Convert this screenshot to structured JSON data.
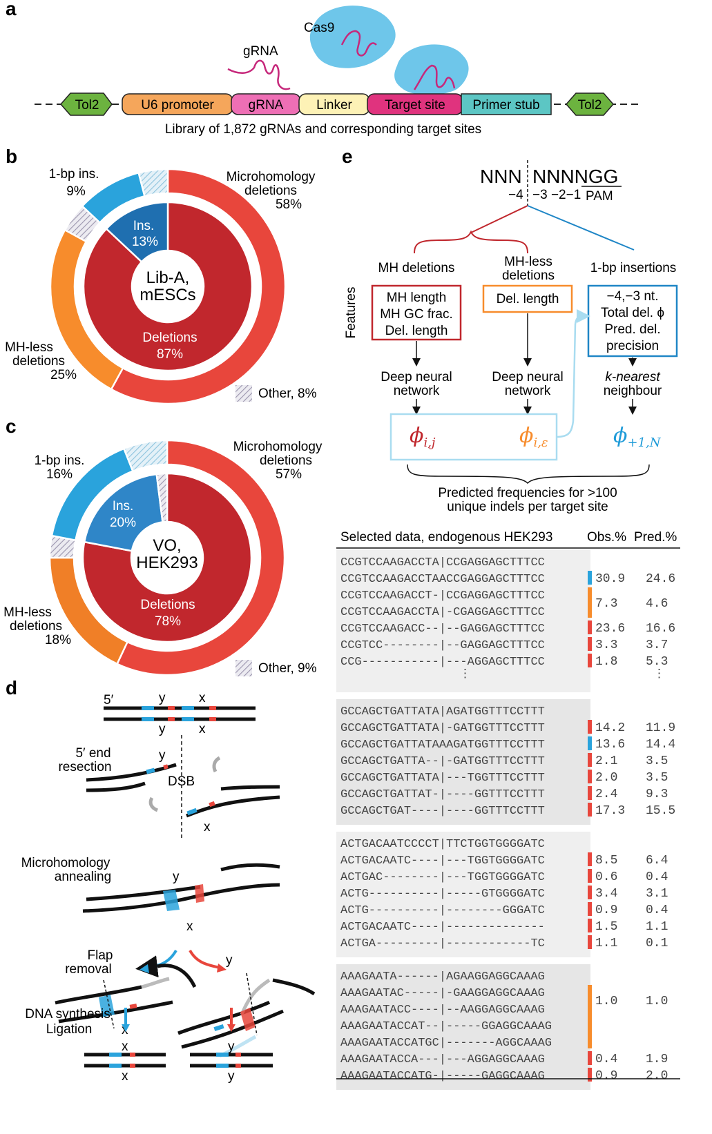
{
  "panel_a": {
    "letter": "a",
    "cas9": "Cas9",
    "grna_label": "gRNA",
    "segments": [
      {
        "label": "Tol2",
        "color": "#6cb33f"
      },
      {
        "label": "U6 promoter",
        "color": "#f5a65b"
      },
      {
        "label": "gRNA",
        "color": "#ee6fb5"
      },
      {
        "label": "Linker",
        "color": "#fdf2b6"
      },
      {
        "label": "Target site",
        "color": "#e0337e"
      },
      {
        "label": "Primer stub",
        "color": "#5cc6c4"
      },
      {
        "label": "Tol2",
        "color": "#6cb33f"
      }
    ],
    "caption": "Library of 1,872 gRNAs and corresponding target sites"
  },
  "panel_b": {
    "letter": "b",
    "center": [
      "Lib-A,",
      "mESCs"
    ],
    "outer_labels": {
      "mh": [
        "Microhomology",
        "deletions",
        "58%"
      ],
      "ins": [
        "1-bp ins.",
        "9%"
      ],
      "mhless": [
        "MH-less",
        "deletions",
        "25%"
      ]
    },
    "inner_labels": {
      "ins": [
        "Ins.",
        "13%"
      ],
      "del": [
        "Deletions",
        "87%"
      ]
    },
    "other": "Other, 8%"
  },
  "panel_c": {
    "letter": "c",
    "center": [
      "VO,",
      "HEK293"
    ],
    "outer_labels": {
      "mh": [
        "Microhomology",
        "deletions",
        "57%"
      ],
      "ins": [
        "1-bp ins.",
        "16%"
      ],
      "mhless": [
        "MH-less",
        "deletions",
        "18%"
      ]
    },
    "inner_labels": {
      "ins": [
        "Ins.",
        "20%"
      ],
      "del": [
        "Deletions",
        "78%"
      ]
    },
    "other": "Other, 9%"
  },
  "chart_data": [
    {
      "type": "pie",
      "title": "Lib-A, mESCs",
      "rings": [
        {
          "name": "outer",
          "slices": [
            {
              "label": "Microhomology deletions",
              "value": 58,
              "color": "#e8463c"
            },
            {
              "label": "MH-less deletions",
              "value": 25,
              "color": "#f78c2c"
            },
            {
              "label": "Other",
              "value": 4,
              "color": "#c9c3d2",
              "hatched": true
            },
            {
              "label": "1-bp ins.",
              "value": 9,
              "color": "#2aa3dc"
            },
            {
              "label": "Other",
              "value": 4,
              "color": "#b9dced",
              "hatched": true
            }
          ]
        },
        {
          "name": "inner",
          "slices": [
            {
              "label": "Deletions",
              "value": 87,
              "color": "#c1272d"
            },
            {
              "label": "Ins.",
              "value": 13,
              "color": "#1f6fb0"
            }
          ]
        }
      ]
    },
    {
      "type": "pie",
      "title": "VO, HEK293",
      "rings": [
        {
          "name": "outer",
          "slices": [
            {
              "label": "Microhomology deletions",
              "value": 57,
              "color": "#e8463c"
            },
            {
              "label": "MH-less deletions",
              "value": 18,
              "color": "#f07f27"
            },
            {
              "label": "Other",
              "value": 3,
              "color": "#c9c3d2",
              "hatched": true
            },
            {
              "label": "1-bp ins.",
              "value": 16,
              "color": "#2aa3dc"
            },
            {
              "label": "Other",
              "value": 6,
              "color": "#b9dced",
              "hatched": true
            }
          ]
        },
        {
          "name": "inner",
          "slices": [
            {
              "label": "Deletions",
              "value": 78,
              "color": "#c1272d"
            },
            {
              "label": "Ins.",
              "value": 20,
              "color": "#2f86c8"
            },
            {
              "label": "Other",
              "value": 2,
              "color": "#c9c3d2",
              "hatched": true
            }
          ]
        }
      ]
    }
  ],
  "panel_d": {
    "letter": "d",
    "five_prime": "5′",
    "y": "y",
    "x": "x",
    "step1": [
      "5′ end",
      "resection"
    ],
    "dsb": "DSB",
    "step2": [
      "Microhomology",
      "annealing"
    ],
    "step3": [
      "Flap",
      "removal"
    ],
    "step4": [
      "DNA synthesis",
      "Ligation"
    ],
    "colors": {
      "blue": "#2aa3dc",
      "red": "#e8463c"
    }
  },
  "panel_e": {
    "letter": "e",
    "seq_left": "NNN",
    "seq_right": "NNNNGG",
    "pos_left": "−4",
    "pos_right": "−3 −2−1",
    "pam": "PAM",
    "features": "Features",
    "cat1": "MH deletions",
    "cat2": [
      "MH-less",
      "deletions"
    ],
    "cat3": "1-bp insertions",
    "box1": [
      "MH length",
      "MH GC frac.",
      "Del. length"
    ],
    "box2": "Del. length",
    "box3": [
      "−4,−3 nt.",
      "Total del. ϕ",
      "Pred. del.",
      "precision"
    ],
    "model1": [
      "Deep neural",
      "network"
    ],
    "model2": [
      "Deep neural",
      "network"
    ],
    "model3": [
      "k-nearest",
      "neighbour"
    ],
    "phi1": {
      "base": "ϕ",
      "sub": "i,j"
    },
    "phi2": {
      "base": "ϕ",
      "sub": "i,ε"
    },
    "phi3": {
      "base": "ϕ",
      "sub": "+1,N"
    },
    "output": [
      "Predicted frequencies for >100",
      "unique indels per target site"
    ]
  },
  "table": {
    "header": {
      "title": "Selected data, endogenous HEK293",
      "obs": "Obs.%",
      "pred": "Pred.%"
    },
    "ellipsis": "⋮",
    "groups": [
      {
        "ref": "CCGTCCAAGACCTA|CCGAGGAGCTTTCC",
        "rows": [
          {
            "seq": "CCGTCCAAGACCTAACCGAGGAGCTTTCC",
            "type": "ins",
            "obs": "30.9",
            "pred": "24.6"
          },
          {
            "seq": "CCGTCCAAGACCT-|CCGAGGAGCTTTCC",
            "type": "mhless"
          },
          {
            "seq": "CCGTCCAAGACCTA|-CGAGGAGCTTTCC",
            "type": "mhless",
            "obs": "7.3",
            "pred": "4.6",
            "span": true
          },
          {
            "seq": "CCGTCCAAGACC--|--GAGGAGCTTTCC",
            "type": "mh",
            "obs": "23.6",
            "pred": "16.6"
          },
          {
            "seq": "CCGTCC--------|--GAGGAGCTTTCC",
            "type": "mh",
            "obs": "3.3",
            "pred": "3.7"
          },
          {
            "seq": "CCG-----------|---AGGAGCTTTCC",
            "type": "mh",
            "obs": "1.8",
            "pred": "5.3"
          }
        ]
      },
      {
        "ref": "GCCAGCTGATTATA|AGATGGTTTCCTTT",
        "rows": [
          {
            "seq": "GCCAGCTGATTATA|-GATGGTTTCCTTT",
            "type": "mh",
            "obs": "14.2",
            "pred": "11.9"
          },
          {
            "seq": "GCCAGCTGATTATAAAGATGGTTTCCTTT",
            "type": "ins",
            "obs": "13.6",
            "pred": "14.4"
          },
          {
            "seq": "GCCAGCTGATTA--|-GATGGTTTCCTTT",
            "type": "mh",
            "obs": "2.1",
            "pred": "3.5"
          },
          {
            "seq": "GCCAGCTGATTATA|---TGGTTTCCTTT",
            "type": "mh",
            "obs": "2.0",
            "pred": "3.5"
          },
          {
            "seq": "GCCAGCTGATTAT-|----GGTTTCCTTT",
            "type": "mh",
            "obs": "2.4",
            "pred": "9.3"
          },
          {
            "seq": "GCCAGCTGAT----|----GGTTTCCTTT",
            "type": "mh",
            "obs": "17.3",
            "pred": "15.5"
          }
        ]
      },
      {
        "ref": "ACTGACAATCCCCT|TTCTGGTGGGGATC",
        "rows": [
          {
            "seq": "ACTGACAATC----|---TGGTGGGGATC",
            "type": "mh",
            "obs": "8.5",
            "pred": "6.4"
          },
          {
            "seq": "ACTGAC--------|---TGGTGGGGATC",
            "type": "mh",
            "obs": "0.6",
            "pred": "0.4"
          },
          {
            "seq": "ACTG----------|-----GTGGGGATC",
            "type": "mh",
            "obs": "3.4",
            "pred": "3.1"
          },
          {
            "seq": "ACTG----------|--------GGGATC",
            "type": "mh",
            "obs": "0.9",
            "pred": "0.4"
          },
          {
            "seq": "ACTGACAATC----|--------------",
            "type": "mh",
            "obs": "1.5",
            "pred": "1.1"
          },
          {
            "seq": "ACTGA---------|------------TC",
            "type": "mh",
            "obs": "1.1",
            "pred": "0.1"
          }
        ]
      },
      {
        "ref": "AAAGAATA------|AGAAGGAGGCAAAG",
        "rows": [
          {
            "seq": "AAAGAATAC-----|-GAAGGAGGCAAAG",
            "type": "mhless"
          },
          {
            "seq": "AAAGAATACC----|--AAGGAGGCAAAG",
            "type": "mhless",
            "obs": "1.0",
            "pred": "1.0",
            "span": true
          },
          {
            "seq": "AAAGAATACCAT--|-----GGAGGCAAAG",
            "type": "mhless"
          },
          {
            "seq": "AAAGAATACCATGC|-------AGGCAAAG",
            "type": "mhless"
          },
          {
            "seq": "AAAGAATACCA---|---AGGAGGCAAAG",
            "type": "mh",
            "obs": "0.4",
            "pred": "1.9"
          },
          {
            "seq": "AAAGAATACCATG-|-----GAGGCAAAG",
            "type": "mh",
            "obs": "0.9",
            "pred": "2.0"
          }
        ]
      }
    ]
  }
}
